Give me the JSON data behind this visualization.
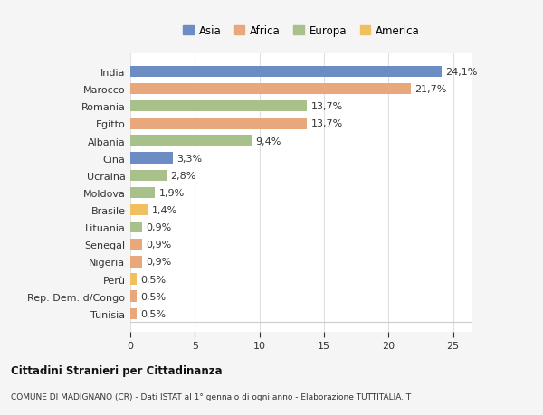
{
  "categories": [
    "India",
    "Marocco",
    "Romania",
    "Egitto",
    "Albania",
    "Cina",
    "Ucraina",
    "Moldova",
    "Brasile",
    "Lituania",
    "Senegal",
    "Nigeria",
    "Perù",
    "Rep. Dem. d/Congo",
    "Tunisia"
  ],
  "values": [
    24.1,
    21.7,
    13.7,
    13.7,
    9.4,
    3.3,
    2.8,
    1.9,
    1.4,
    0.9,
    0.9,
    0.9,
    0.5,
    0.5,
    0.5
  ],
  "labels": [
    "24,1%",
    "21,7%",
    "13,7%",
    "13,7%",
    "9,4%",
    "3,3%",
    "2,8%",
    "1,9%",
    "1,4%",
    "0,9%",
    "0,9%",
    "0,9%",
    "0,5%",
    "0,5%",
    "0,5%"
  ],
  "colors": [
    "#6b8dc4",
    "#e8a87c",
    "#a8c08a",
    "#e8a87c",
    "#a8c08a",
    "#6b8dc4",
    "#a8c08a",
    "#a8c08a",
    "#f0c060",
    "#a8c08a",
    "#e8a87c",
    "#e8a87c",
    "#f0c060",
    "#e8a87c",
    "#e8a87c"
  ],
  "legend_labels": [
    "Asia",
    "Africa",
    "Europa",
    "America"
  ],
  "legend_colors": [
    "#6b8dc4",
    "#e8a87c",
    "#a8c08a",
    "#f0c060"
  ],
  "title_bold": "Cittadini Stranieri per Cittadinanza",
  "title_sub": "COMUNE DI MADIGNANO (CR) - Dati ISTAT al 1° gennaio di ogni anno - Elaborazione TUTTITALIA.IT",
  "xlim": [
    0,
    26.5
  ],
  "xticks": [
    0,
    5,
    10,
    15,
    20,
    25
  ],
  "background_color": "#f5f5f5",
  "bar_background": "#ffffff",
  "grid_color": "#e0e0e0",
  "bar_height": 0.65,
  "label_fontsize": 8,
  "ytick_fontsize": 8,
  "xtick_fontsize": 8
}
